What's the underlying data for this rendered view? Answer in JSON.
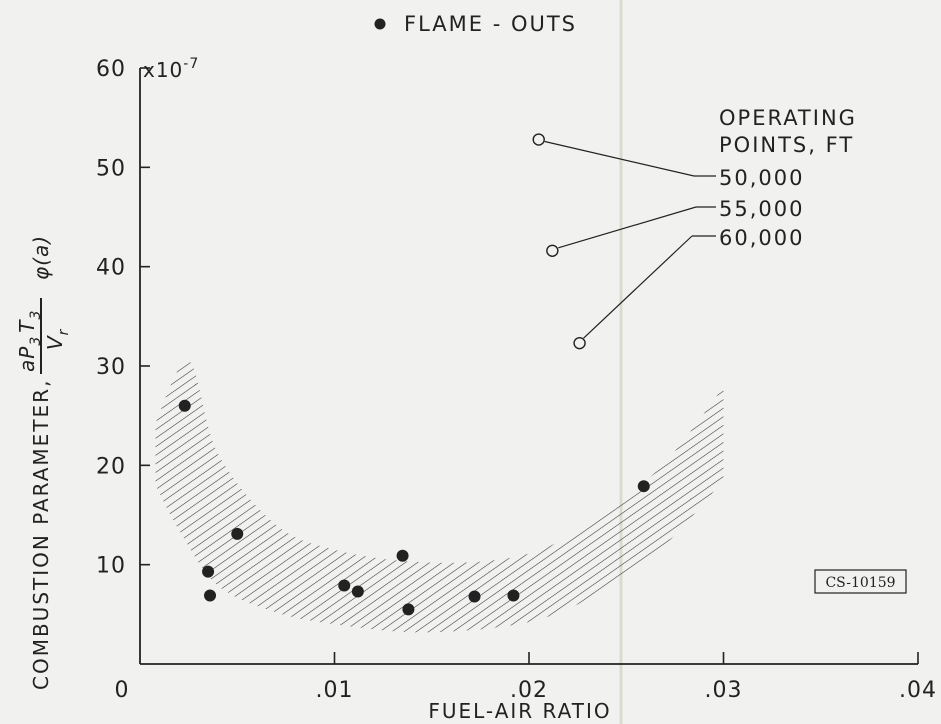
{
  "chart_data": {
    "type": "scatter",
    "x_axis": {
      "label": "FUEL-AIR RATIO",
      "range": [
        0,
        0.04
      ],
      "ticks": [
        0,
        0.01,
        0.02,
        0.03,
        0.04
      ],
      "tick_labels": [
        "0",
        ".01",
        ".02",
        ".03",
        ".04"
      ]
    },
    "y_axis": {
      "label_text": "COMBUSTION PARAMETER,",
      "label_formula": "aP3T3 / Vr  φ(a)",
      "label_formula_parts": {
        "a": "a",
        "P": "P",
        "P_sub": "3",
        "T": "T",
        "T_sub": "3",
        "V": "V",
        "V_sub": "r",
        "phi": "φ(a)"
      },
      "range": [
        0,
        60
      ],
      "ticks": [
        10,
        20,
        30,
        40,
        50,
        60
      ],
      "tick_labels": [
        "10",
        "20",
        "30",
        "40",
        "50",
        "60"
      ],
      "multiplier_label": "x10",
      "multiplier_exponent": "-7"
    },
    "legend": {
      "label": "FLAME - OUTS",
      "position": "top-center"
    },
    "series": [
      {
        "name": "FLAME - OUTS",
        "marker": "filled-circle",
        "points": [
          {
            "x": 0.0023,
            "y": 26.0
          },
          {
            "x": 0.0035,
            "y": 9.3
          },
          {
            "x": 0.0036,
            "y": 6.9
          },
          {
            "x": 0.005,
            "y": 13.1
          },
          {
            "x": 0.0105,
            "y": 7.9
          },
          {
            "x": 0.0112,
            "y": 7.3
          },
          {
            "x": 0.0135,
            "y": 10.9
          },
          {
            "x": 0.0138,
            "y": 5.5
          },
          {
            "x": 0.0172,
            "y": 6.8
          },
          {
            "x": 0.0192,
            "y": 6.9
          },
          {
            "x": 0.0259,
            "y": 17.9
          }
        ]
      },
      {
        "name": "OPERATING POINTS, FT",
        "marker": "open-circle",
        "points": [
          {
            "x": 0.0205,
            "y": 52.8,
            "label": "50,000"
          },
          {
            "x": 0.0212,
            "y": 41.6,
            "label": "55,000"
          },
          {
            "x": 0.0226,
            "y": 32.3,
            "label": "60,000"
          }
        ]
      }
    ],
    "band": {
      "description": "hatched flame-out region",
      "upper": [
        [
          0.0008,
          24.3
        ],
        [
          0.0025,
          30.5
        ],
        [
          0.004,
          21.2
        ],
        [
          0.007,
          14.0
        ],
        [
          0.01,
          11.5
        ],
        [
          0.014,
          10.3
        ],
        [
          0.018,
          10.4
        ],
        [
          0.021,
          11.8
        ],
        [
          0.024,
          15.4
        ],
        [
          0.027,
          20.3
        ],
        [
          0.03,
          27.9
        ]
      ],
      "lower": [
        [
          0.0008,
          18.0
        ],
        [
          0.002,
          13.5
        ],
        [
          0.004,
          7.9
        ],
        [
          0.007,
          5.2
        ],
        [
          0.01,
          4.0
        ],
        [
          0.014,
          3.2
        ],
        [
          0.018,
          3.6
        ],
        [
          0.021,
          4.8
        ],
        [
          0.024,
          7.6
        ],
        [
          0.027,
          12.0
        ],
        [
          0.03,
          18.5
        ]
      ]
    },
    "operating_points_title": [
      "OPERATING",
      "POINTS, FT"
    ],
    "annotation_stamp": "CS-10159",
    "grid": false
  }
}
